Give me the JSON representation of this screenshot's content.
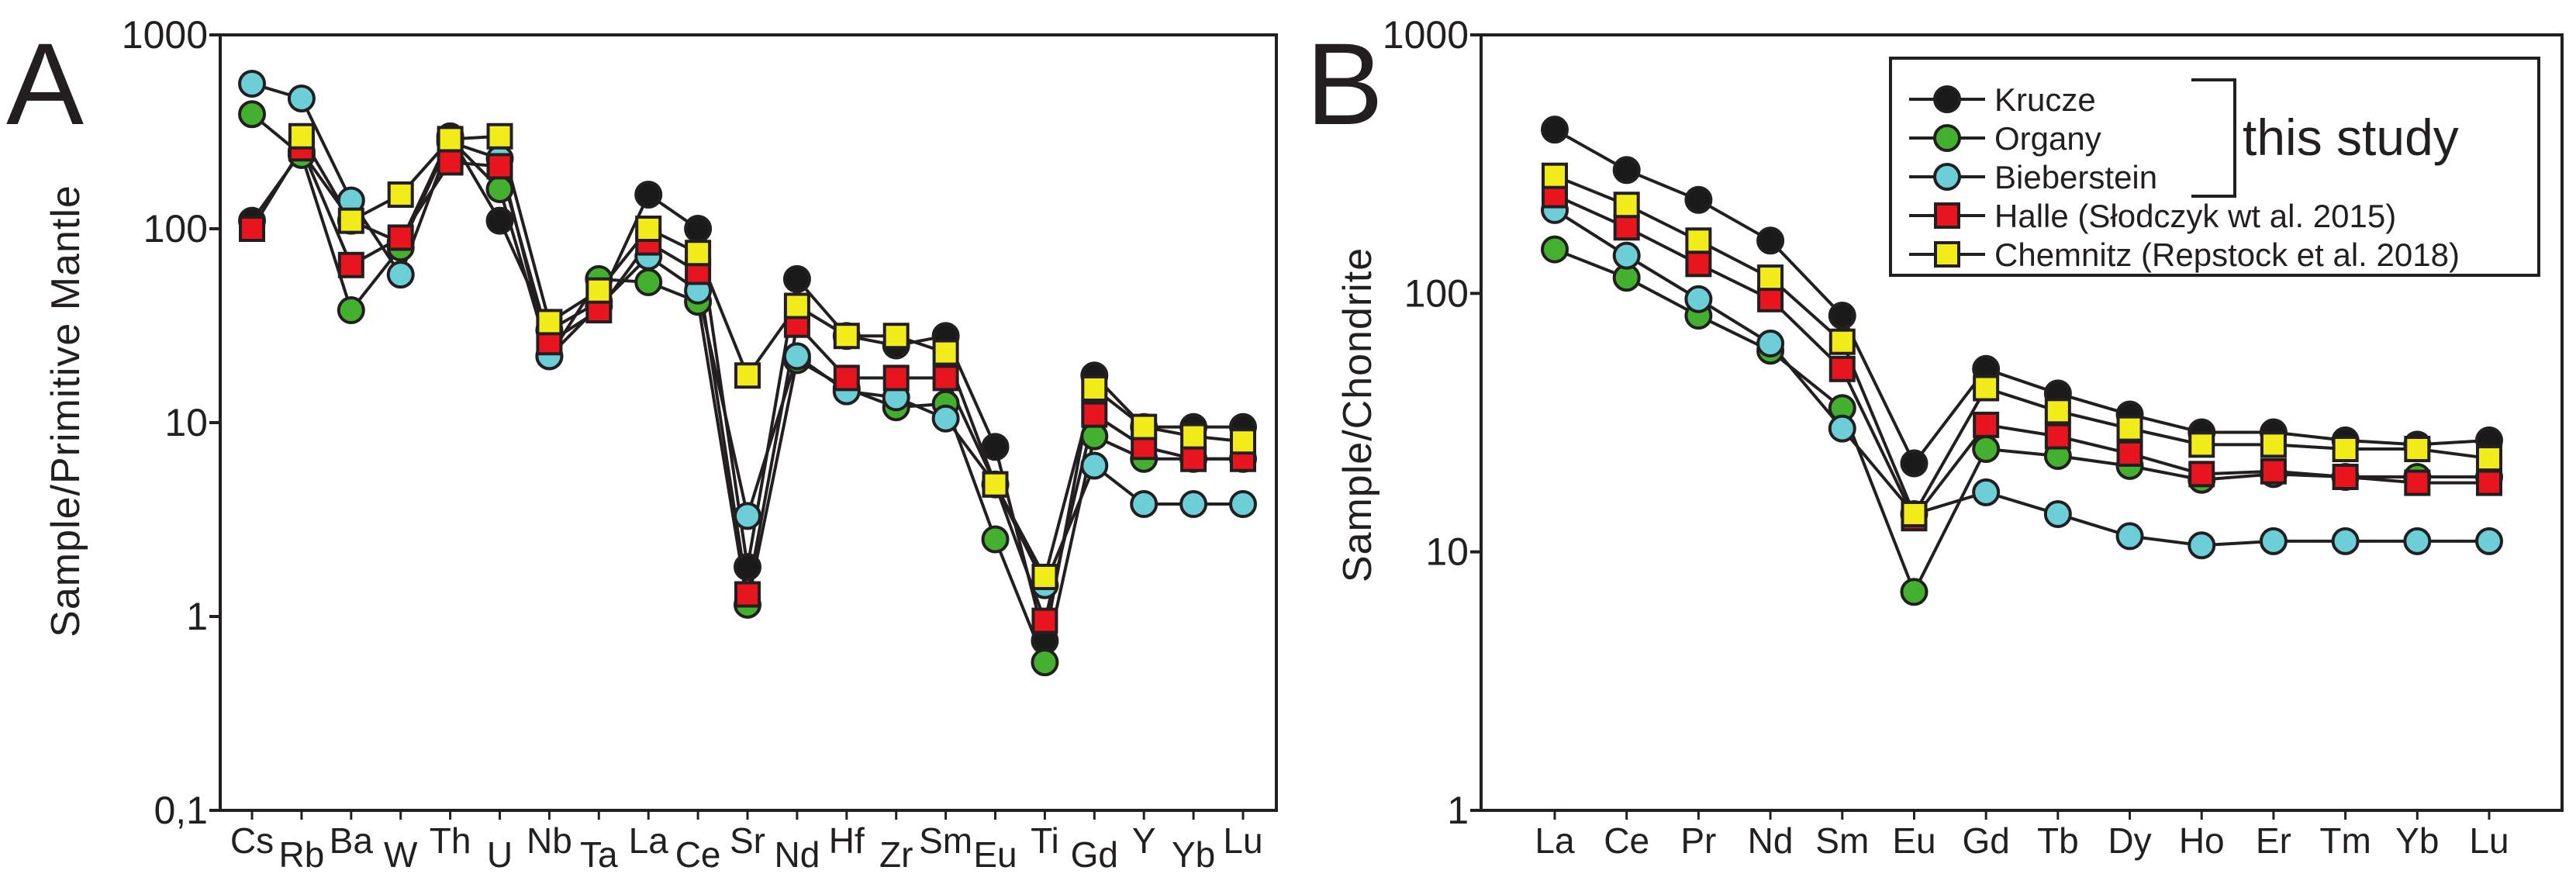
{
  "colors": {
    "Krucze": "#1a1a1a",
    "Organy": "#44b02f",
    "Bieberstein": "#6ccfd8",
    "Halle": "#e8141e",
    "Chemnitz": "#f2ec1a"
  },
  "chart_data": [
    {
      "panel": "A",
      "type": "line",
      "scale": "log",
      "ylabel": "Sample/Primitive Mantle",
      "ylim": [
        0.1,
        1000
      ],
      "yticks": [
        "0,1",
        "1",
        "10",
        "100",
        "1000"
      ],
      "categories": [
        "Cs",
        "Rb",
        "Ba",
        "W",
        "Th",
        "U",
        "Nb",
        "Ta",
        "La",
        "Ce",
        "Sr",
        "Nd",
        "Hf",
        "Zr",
        "Sm",
        "Eu",
        "Ti",
        "Gd",
        "Y",
        "Yb",
        "Lu"
      ],
      "series": [
        {
          "name": "Krucze",
          "marker": "circle",
          "color": "#1a1a1a",
          "values": [
            110,
            250,
            110,
            85,
            300,
            110,
            30,
            42,
            150,
            100,
            1.8,
            55,
            28,
            25,
            28,
            7.5,
            0.75,
            17.5,
            9.5,
            9.5,
            9.5
          ]
        },
        {
          "name": "Organy",
          "marker": "circle",
          "color": "#44b02f",
          "values": [
            390,
            240,
            38,
            80,
            290,
            160,
            22,
            55,
            53,
            42,
            1.15,
            21,
            15,
            12,
            12.5,
            2.5,
            0.58,
            8.5,
            6.5,
            6.5,
            6.5
          ]
        },
        {
          "name": "Bieberstein",
          "marker": "circle",
          "color": "#6ccfd8",
          "values": [
            560,
            470,
            140,
            58,
            280,
            230,
            22,
            40,
            72,
            48,
            3.3,
            22,
            14.5,
            13.5,
            10.5,
            4.8,
            1.45,
            6,
            3.8,
            3.8,
            3.8
          ]
        },
        {
          "name": "Halle (Słodczyk wt al. 2015)",
          "marker": "square",
          "color": "#e8141e",
          "values": [
            100,
            260,
            65,
            90,
            220,
            210,
            26,
            38,
            85,
            60,
            1.3,
            32,
            17,
            17,
            17,
            4.8,
            0.95,
            11,
            7.5,
            6.5,
            6.5
          ]
        },
        {
          "name": "Chemnitz (Repstock et al. 2018)",
          "marker": "square",
          "color": "#f2ec1a",
          "values": [
            null,
            300,
            110,
            150,
            290,
            300,
            33,
            48,
            100,
            75,
            17.5,
            40,
            28,
            28,
            23,
            4.8,
            1.6,
            15,
            9.5,
            8.5,
            8
          ]
        }
      ]
    },
    {
      "panel": "B",
      "type": "line",
      "scale": "log",
      "ylabel": "Sample/Chondrite",
      "ylim": [
        1,
        1000
      ],
      "yticks": [
        "1",
        "10",
        "100",
        "1000"
      ],
      "categories": [
        "La",
        "Ce",
        "Pr",
        "Nd",
        "Sm",
        "Eu",
        "Gd",
        "Tb",
        "Dy",
        "Ho",
        "Er",
        "Tm",
        "Yb",
        "Lu"
      ],
      "series": [
        {
          "name": "Krucze",
          "marker": "circle",
          "color": "#1a1a1a",
          "values": [
            430,
            300,
            230,
            160,
            82,
            22,
            51,
            41,
            34,
            29,
            29,
            27,
            26,
            27
          ]
        },
        {
          "name": "Organy",
          "marker": "circle",
          "color": "#44b02f",
          "values": [
            148,
            115,
            82,
            60,
            36,
            7,
            25,
            23.5,
            21.5,
            19,
            20,
            19.5,
            19.5,
            19.5
          ]
        },
        {
          "name": "Bieberstein",
          "marker": "circle",
          "color": "#6ccfd8",
          "values": [
            210,
            140,
            95,
            64,
            30,
            14,
            17,
            14,
            11.5,
            10.6,
            11,
            11,
            11,
            11
          ]
        },
        {
          "name": "Halle (Słodczyk wt al. 2015)",
          "marker": "square",
          "color": "#e8141e",
          "values": [
            240,
            180,
            130,
            95,
            51,
            13.5,
            31,
            28,
            24,
            20,
            20.5,
            19.5,
            18.5,
            18.5
          ]
        },
        {
          "name": "Chemnitz (Repstock et al. 2018)",
          "marker": "square",
          "color": "#f2ec1a",
          "values": [
            285,
            220,
            160,
            115,
            65,
            14,
            43,
            35,
            30,
            26,
            26,
            25,
            25,
            23
          ]
        }
      ],
      "legend": {
        "entries": [
          "Krucze",
          "Organy",
          "Bieberstein",
          "Halle (Słodczyk wt al. 2015)",
          "Chemnitz (Repstock et al. 2018)"
        ],
        "note": "this study",
        "note_applies_to": [
          "Krucze",
          "Organy",
          "Bieberstein"
        ],
        "placement": "top-right"
      }
    }
  ]
}
